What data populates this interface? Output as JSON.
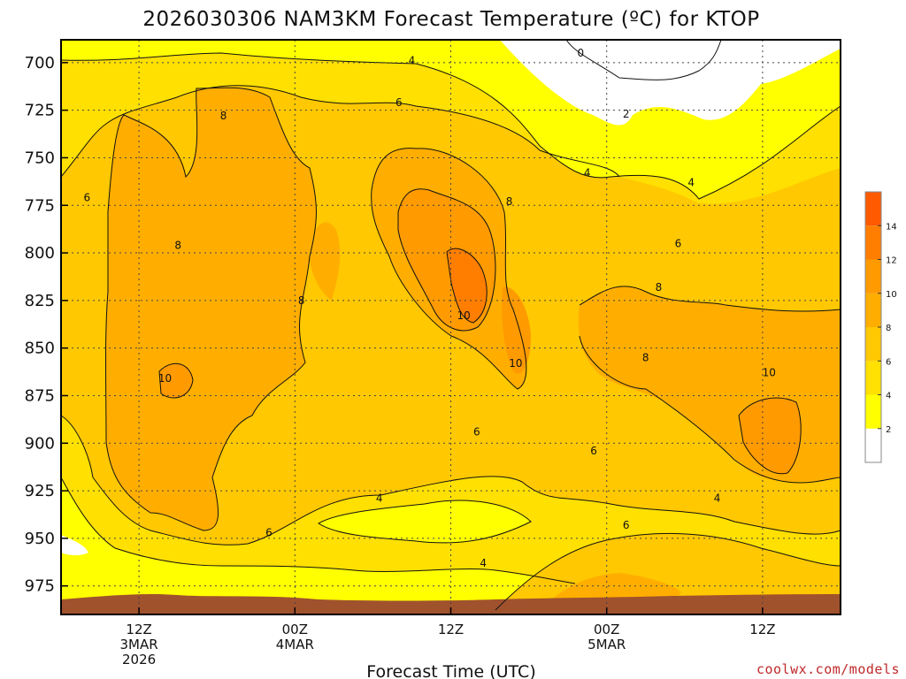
{
  "chart_data": {
    "type": "contour",
    "title": "2026030306 NAM3KM Forecast Temperature (ºC) for KTOP",
    "xlabel": "Forecast Time (UTC)",
    "ylabel": "",
    "credit": "coolwx.com/models",
    "x_ticks": [
      {
        "hour": 6,
        "lines": [
          "12Z",
          "3MAR",
          "2026"
        ]
      },
      {
        "hour": 18,
        "lines": [
          "00Z",
          "4MAR"
        ]
      },
      {
        "hour": 30,
        "lines": [
          "12Z"
        ]
      },
      {
        "hour": 42,
        "lines": [
          "00Z",
          "5MAR"
        ]
      },
      {
        "hour": 54,
        "lines": [
          "12Z"
        ]
      }
    ],
    "x_range": [
      0,
      60
    ],
    "y_ticks": [
      700,
      725,
      750,
      775,
      800,
      825,
      850,
      875,
      900,
      925,
      950,
      975
    ],
    "y_range": [
      688,
      990
    ],
    "colorbar": {
      "levels": [
        0,
        2,
        4,
        6,
        8,
        10,
        12,
        14,
        16
      ],
      "tick_labels": [
        "2",
        "4",
        "6",
        "8",
        "10",
        "12",
        "14"
      ],
      "colors": [
        "#ffffff",
        "#ffff00",
        "#ffe000",
        "#ffc800",
        "#ffae00",
        "#ff9a00",
        "#ff7e00",
        "#ff5a00"
      ]
    },
    "contour_labels": [
      {
        "text": "0",
        "hour": 40.0,
        "pressure": 695
      },
      {
        "text": "4",
        "hour": 27.0,
        "pressure": 699
      },
      {
        "text": "2",
        "hour": 43.5,
        "pressure": 727
      },
      {
        "text": "6",
        "hour": 26.0,
        "pressure": 721
      },
      {
        "text": "8",
        "hour": 12.5,
        "pressure": 728
      },
      {
        "text": "4",
        "hour": 40.5,
        "pressure": 758
      },
      {
        "text": "4",
        "hour": 48.5,
        "pressure": 763
      },
      {
        "text": "6",
        "hour": 2.0,
        "pressure": 771
      },
      {
        "text": "8",
        "hour": 34.5,
        "pressure": 773
      },
      {
        "text": "6",
        "hour": 47.5,
        "pressure": 795
      },
      {
        "text": "8",
        "hour": 9.0,
        "pressure": 796
      },
      {
        "text": "8",
        "hour": 18.5,
        "pressure": 825
      },
      {
        "text": "8",
        "hour": 46.0,
        "pressure": 818
      },
      {
        "text": "10",
        "hour": 31.0,
        "pressure": 833
      },
      {
        "text": "10",
        "hour": 35.0,
        "pressure": 858
      },
      {
        "text": "8",
        "hour": 45.0,
        "pressure": 855
      },
      {
        "text": "10",
        "hour": 8.0,
        "pressure": 866
      },
      {
        "text": "10",
        "hour": 54.5,
        "pressure": 863
      },
      {
        "text": "6",
        "hour": 32.0,
        "pressure": 894
      },
      {
        "text": "6",
        "hour": 41.0,
        "pressure": 904
      },
      {
        "text": "4",
        "hour": 24.5,
        "pressure": 929
      },
      {
        "text": "4",
        "hour": 50.5,
        "pressure": 929
      },
      {
        "text": "6",
        "hour": 16.0,
        "pressure": 947
      },
      {
        "text": "6",
        "hour": 43.5,
        "pressure": 943
      },
      {
        "text": "4",
        "hour": 32.5,
        "pressure": 963
      }
    ],
    "grid": true
  }
}
